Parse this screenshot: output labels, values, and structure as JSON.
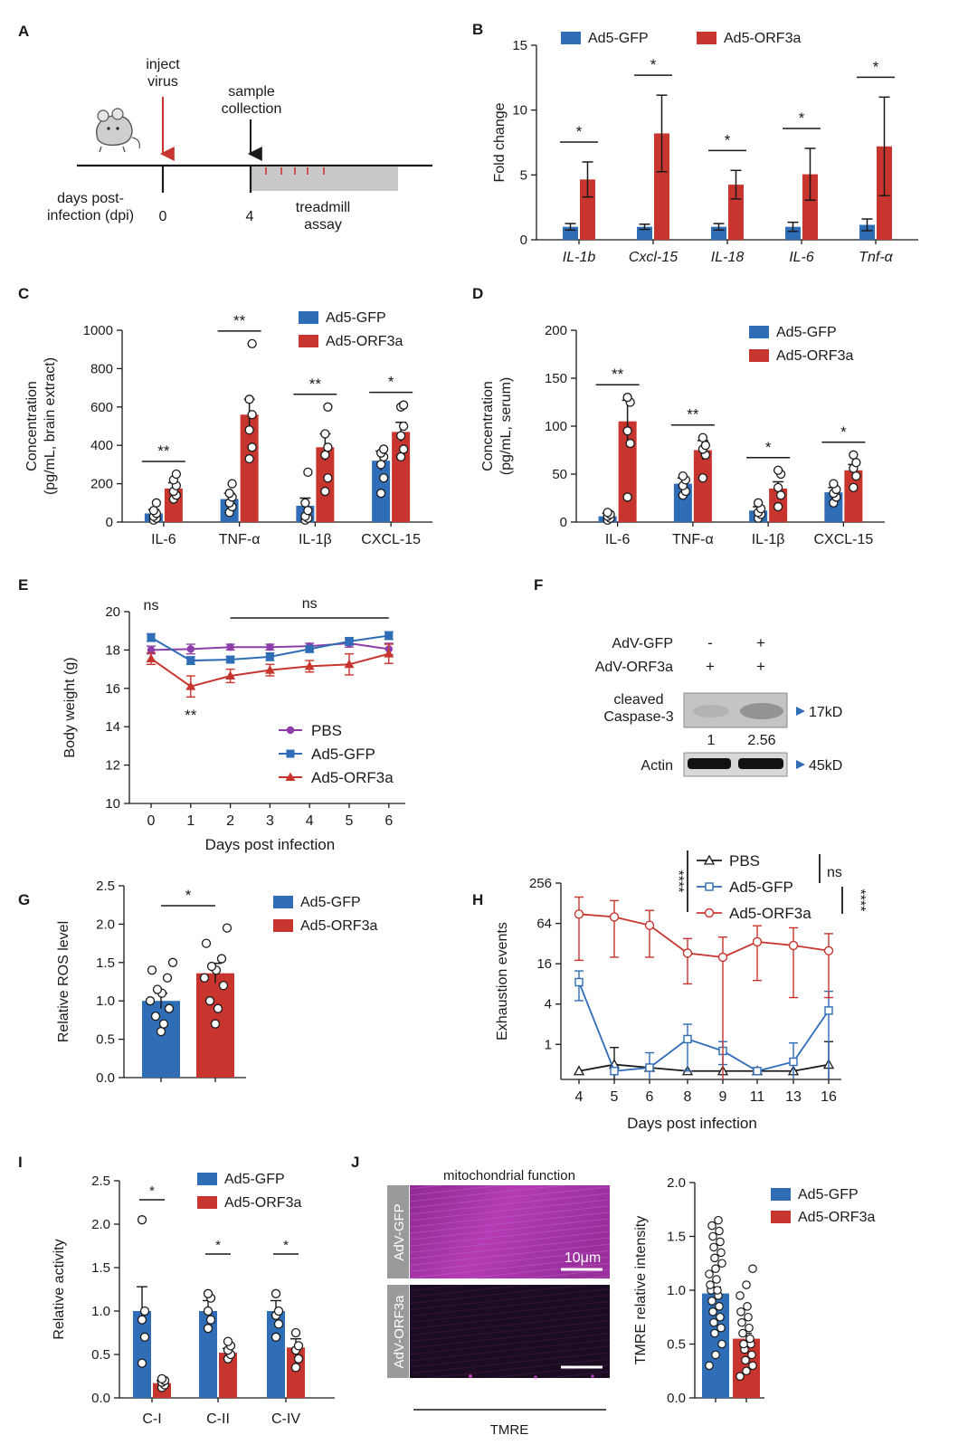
{
  "colors": {
    "gfp": "#2f6db7",
    "orf3a": "#c8352e",
    "pbs": "#8e3ea8",
    "black": "#1a1a1a",
    "red_arrow": "#c8352e",
    "tmre": "#b43cb4"
  },
  "panel_labels": [
    "A",
    "B",
    "C",
    "D",
    "E",
    "F",
    "G",
    "H",
    "I",
    "J"
  ],
  "panel_A": {
    "inject_label": "inject\nvirus",
    "sample_label": "sample\ncollection",
    "days_label": "days post-\ninfection (dpi)",
    "day0": "0",
    "day4": "4",
    "assay_label": "treadmill\nassay",
    "icons": [
      "mouse-icon",
      "red-down-arrow-icon",
      "black-down-arrow-icon"
    ]
  },
  "chart_data": [
    {
      "id": "B",
      "type": "bar",
      "title": "",
      "ylabel": "Fold change",
      "xlabel": "",
      "ylim": [
        0,
        15
      ],
      "yticks": [
        0,
        5,
        10,
        15
      ],
      "categories": [
        "IL-1b",
        "Cxcl-15",
        "IL-18",
        "IL-6",
        "Tnf-α"
      ],
      "series": [
        {
          "name": "Ad5-GFP",
          "values": [
            1.0,
            1.0,
            1.0,
            1.0,
            1.15
          ],
          "errors": [
            0.25,
            0.2,
            0.25,
            0.35,
            0.45
          ]
        },
        {
          "name": "Ad5-ORF3a",
          "values": [
            4.65,
            8.2,
            4.25,
            5.05,
            7.2
          ],
          "errors": [
            1.35,
            2.95,
            1.1,
            2.0,
            3.8
          ]
        }
      ],
      "significance": [
        "*",
        "*",
        "*",
        "*",
        "*"
      ],
      "legend": "top"
    },
    {
      "id": "C",
      "type": "bar",
      "title": "",
      "ylabel": "Concentration\n(pg/mL, brain extract)",
      "xlabel": "",
      "ylim": [
        0,
        1000
      ],
      "yticks": [
        0,
        200,
        400,
        600,
        800,
        1000
      ],
      "categories": [
        "IL-6",
        "TNF-α",
        "IL-1β",
        "CXCL-15"
      ],
      "series": [
        {
          "name": "Ad5-GFP",
          "values": [
            45,
            120,
            85,
            320
          ],
          "errors": [
            20,
            30,
            40,
            50
          ],
          "points": [
            [
              10,
              20,
              30,
              45,
              60,
              100
            ],
            [
              50,
              80,
              100,
              130,
              150,
              200
            ],
            [
              10,
              20,
              30,
              60,
              100,
              260
            ],
            [
              150,
              230,
              300,
              340,
              360,
              380
            ]
          ]
        },
        {
          "name": "Ad5-ORF3a",
          "values": [
            175,
            560,
            390,
            470
          ],
          "errors": [
            30,
            80,
            70,
            50
          ],
          "points": [
            [
              120,
              140,
              160,
              190,
              220,
              250
            ],
            [
              330,
              390,
              480,
              560,
              640,
              930
            ],
            [
              160,
              230,
              350,
              390,
              460,
              600
            ],
            [
              340,
              380,
              450,
              500,
              600,
              610
            ]
          ]
        }
      ],
      "significance": [
        "**",
        "**",
        "**",
        "*"
      ],
      "legend": "top-right"
    },
    {
      "id": "D",
      "type": "bar",
      "title": "",
      "ylabel": "Concentration\n(pg/mL, serum)",
      "xlabel": "",
      "ylim": [
        0,
        200
      ],
      "yticks": [
        0,
        50,
        100,
        150,
        200
      ],
      "categories": [
        "IL-6",
        "TNF-α",
        "IL-1β",
        "CXCL-15"
      ],
      "series": [
        {
          "name": "Ad5-GFP",
          "values": [
            6,
            40,
            12,
            31
          ],
          "errors": [
            3,
            6,
            4,
            5
          ],
          "points": [
            [
              2,
              4,
              6,
              8,
              10
            ],
            [
              28,
              32,
              38,
              44,
              48
            ],
            [
              4,
              8,
              10,
              14,
              20
            ],
            [
              20,
              26,
              30,
              34,
              40
            ]
          ]
        },
        {
          "name": "Ad5-ORF3a",
          "values": [
            105,
            75,
            35,
            54
          ],
          "errors": [
            22,
            10,
            7,
            6
          ],
          "points": [
            [
              26,
              82,
              95,
              125,
              130
            ],
            [
              46,
              70,
              76,
              80,
              88
            ],
            [
              16,
              28,
              36,
              50,
              54
            ],
            [
              36,
              48,
              56,
              62,
              70
            ]
          ]
        }
      ],
      "significance": [
        "**",
        "**",
        "*",
        "*"
      ],
      "legend": "top-right"
    },
    {
      "id": "E",
      "type": "line",
      "title": "",
      "ylabel": "Body weight (g)",
      "xlabel": "Days post infection",
      "xlim": [
        -0.5,
        6.5
      ],
      "xticks": [
        0,
        1,
        2,
        3,
        4,
        5,
        6
      ],
      "ylim": [
        10,
        20
      ],
      "yticks": [
        10,
        12,
        14,
        16,
        18,
        20
      ],
      "x": [
        0,
        1,
        2,
        3,
        4,
        5,
        6
      ],
      "series": [
        {
          "name": "PBS",
          "marker": "circle",
          "values": [
            18.0,
            18.05,
            18.15,
            18.15,
            18.2,
            18.35,
            18.05
          ],
          "errors": [
            0.2,
            0.25,
            0.15,
            0.15,
            0.15,
            0.2,
            0.3
          ]
        },
        {
          "name": "Ad5-GFP",
          "marker": "square",
          "values": [
            18.65,
            17.45,
            17.5,
            17.65,
            18.05,
            18.45,
            18.75
          ],
          "errors": [
            0.2,
            0.2,
            0.15,
            0.2,
            0.15,
            0.2,
            0.2
          ]
        },
        {
          "name": "Ad5-ORF3a",
          "marker": "triangle",
          "values": [
            17.55,
            16.1,
            16.65,
            16.95,
            17.15,
            17.25,
            17.8
          ],
          "errors": [
            0.3,
            0.55,
            0.35,
            0.3,
            0.3,
            0.55,
            0.5
          ]
        }
      ],
      "annotations": {
        "ns_day0": "ns",
        "ns_range": "ns",
        "day1_sig": "**"
      },
      "legend": "bottom-right"
    },
    {
      "id": "G",
      "type": "bar",
      "title": "",
      "ylabel": "Relative ROS level",
      "xlabel": "",
      "ylim": [
        0,
        2.5
      ],
      "yticks": [
        "0.0",
        "0.5",
        "1.0",
        "1.5",
        "2.0",
        "2.5"
      ],
      "categories": [
        "Ad5-GFP",
        "Ad5-ORF3a"
      ],
      "values": [
        1.0,
        1.36
      ],
      "errors": [
        0.1,
        0.13
      ],
      "points": [
        [
          0.6,
          0.7,
          0.8,
          0.9,
          1.0,
          1.1,
          1.15,
          1.3,
          1.4,
          1.5
        ],
        [
          0.7,
          0.9,
          1.0,
          1.2,
          1.3,
          1.4,
          1.45,
          1.55,
          1.75,
          1.95
        ]
      ],
      "significance": [
        "*"
      ],
      "legend": "top-right"
    },
    {
      "id": "H",
      "type": "line",
      "title": "",
      "ylabel": "Exhaustion events",
      "xlabel": "Days post infection",
      "yscale": "log2",
      "yticks": [
        1,
        4,
        16,
        64,
        256
      ],
      "ylim": [
        0.3,
        256
      ],
      "categories": [
        "4",
        "5",
        "6",
        "8",
        "9",
        "11",
        "13",
        "16"
      ],
      "series": [
        {
          "name": "PBS",
          "marker": "triangle-open",
          "values": [
            0.4,
            0.5,
            0.45,
            0.4,
            0.4,
            0.4,
            0.4,
            0.5
          ],
          "errors": [
            0,
            0.4,
            0,
            0,
            0,
            0,
            0,
            0.6
          ]
        },
        {
          "name": "Ad5-GFP",
          "marker": "square-open",
          "values": [
            8.5,
            0.4,
            0.45,
            1.2,
            0.8,
            0.4,
            0.55,
            3.2
          ],
          "errors": [
            4,
            0,
            0.3,
            0.8,
            0.3,
            0,
            0.5,
            3
          ]
        },
        {
          "name": "Ad5-ORF3a",
          "marker": "circle-open",
          "values": [
            88,
            80,
            60,
            23,
            20,
            34,
            30,
            25
          ],
          "errors": [
            70,
            60,
            40,
            15,
            20,
            25,
            25,
            20
          ]
        }
      ],
      "annotations": {
        "sig_left": "****",
        "sig_right": "****",
        "ns": "ns"
      },
      "legend": "top"
    },
    {
      "id": "I",
      "type": "bar",
      "title": "",
      "ylabel": "Relative activity",
      "xlabel": "",
      "ylim": [
        0,
        2.5
      ],
      "yticks": [
        "0.0",
        "0.5",
        "1.0",
        "1.5",
        "2.0",
        "2.5"
      ],
      "categories": [
        "C-I",
        "C-II",
        "C-IV"
      ],
      "series": [
        {
          "name": "Ad5-GFP",
          "values": [
            1.0,
            1.0,
            1.0
          ],
          "errors": [
            0.28,
            0.12,
            0.12
          ],
          "points": [
            [
              0.4,
              0.7,
              0.9,
              1.0,
              2.05
            ],
            [
              0.8,
              0.9,
              1.0,
              1.15,
              1.2
            ],
            [
              0.7,
              0.85,
              0.95,
              1.0,
              1.2
            ]
          ]
        },
        {
          "name": "Ad5-ORF3a",
          "values": [
            0.17,
            0.52,
            0.58
          ],
          "errors": [
            0.03,
            0.05,
            0.1
          ],
          "points": [
            [
              0.12,
              0.15,
              0.18,
              0.2,
              0.22
            ],
            [
              0.45,
              0.5,
              0.55,
              0.6,
              0.65
            ],
            [
              0.35,
              0.45,
              0.55,
              0.6,
              0.75
            ]
          ]
        }
      ],
      "significance": [
        "*",
        "*",
        "*"
      ],
      "legend": "top-right"
    },
    {
      "id": "J",
      "type": "bar",
      "title": "",
      "ylabel": "TMRE relative intensity",
      "xlabel": "",
      "ylim": [
        0,
        2.0
      ],
      "yticks": [
        "0.0",
        "0.5",
        "1.0",
        "1.5",
        "2.0"
      ],
      "categories": [
        "Ad5-GFP",
        "Ad5-ORF3a"
      ],
      "values": [
        0.97,
        0.55
      ],
      "errors": [
        0.06,
        0.05
      ],
      "points": [
        [
          0.3,
          0.4,
          0.5,
          0.6,
          0.65,
          0.7,
          0.75,
          0.8,
          0.85,
          0.9,
          0.95,
          1.0,
          1.0,
          1.05,
          1.1,
          1.15,
          1.2,
          1.25,
          1.3,
          1.35,
          1.4,
          1.45,
          1.5,
          1.55,
          1.6,
          1.65
        ],
        [
          0.2,
          0.25,
          0.3,
          0.35,
          0.4,
          0.45,
          0.5,
          0.5,
          0.55,
          0.6,
          0.65,
          0.7,
          0.75,
          0.8,
          0.85,
          0.95,
          1.05,
          1.2
        ]
      ],
      "legend": "top-right"
    }
  ],
  "panel_F": {
    "row_labels": [
      "AdV-GFP",
      "AdV-ORF3a"
    ],
    "lane1": [
      "-",
      "+"
    ],
    "lane2": [
      "+",
      "+"
    ],
    "band1_label": "cleaved\nCaspase-3",
    "band1_size": "17kD",
    "quant": [
      "1",
      "2.56"
    ],
    "band2_label": "Actin",
    "band2_size": "45kD"
  },
  "panel_J_images": {
    "title": "mitochondrial function",
    "top_label": "AdV-GFP",
    "bottom_label": "AdV-ORF3a",
    "scale_label": "10μm",
    "bottom_caption": "TMRE"
  }
}
